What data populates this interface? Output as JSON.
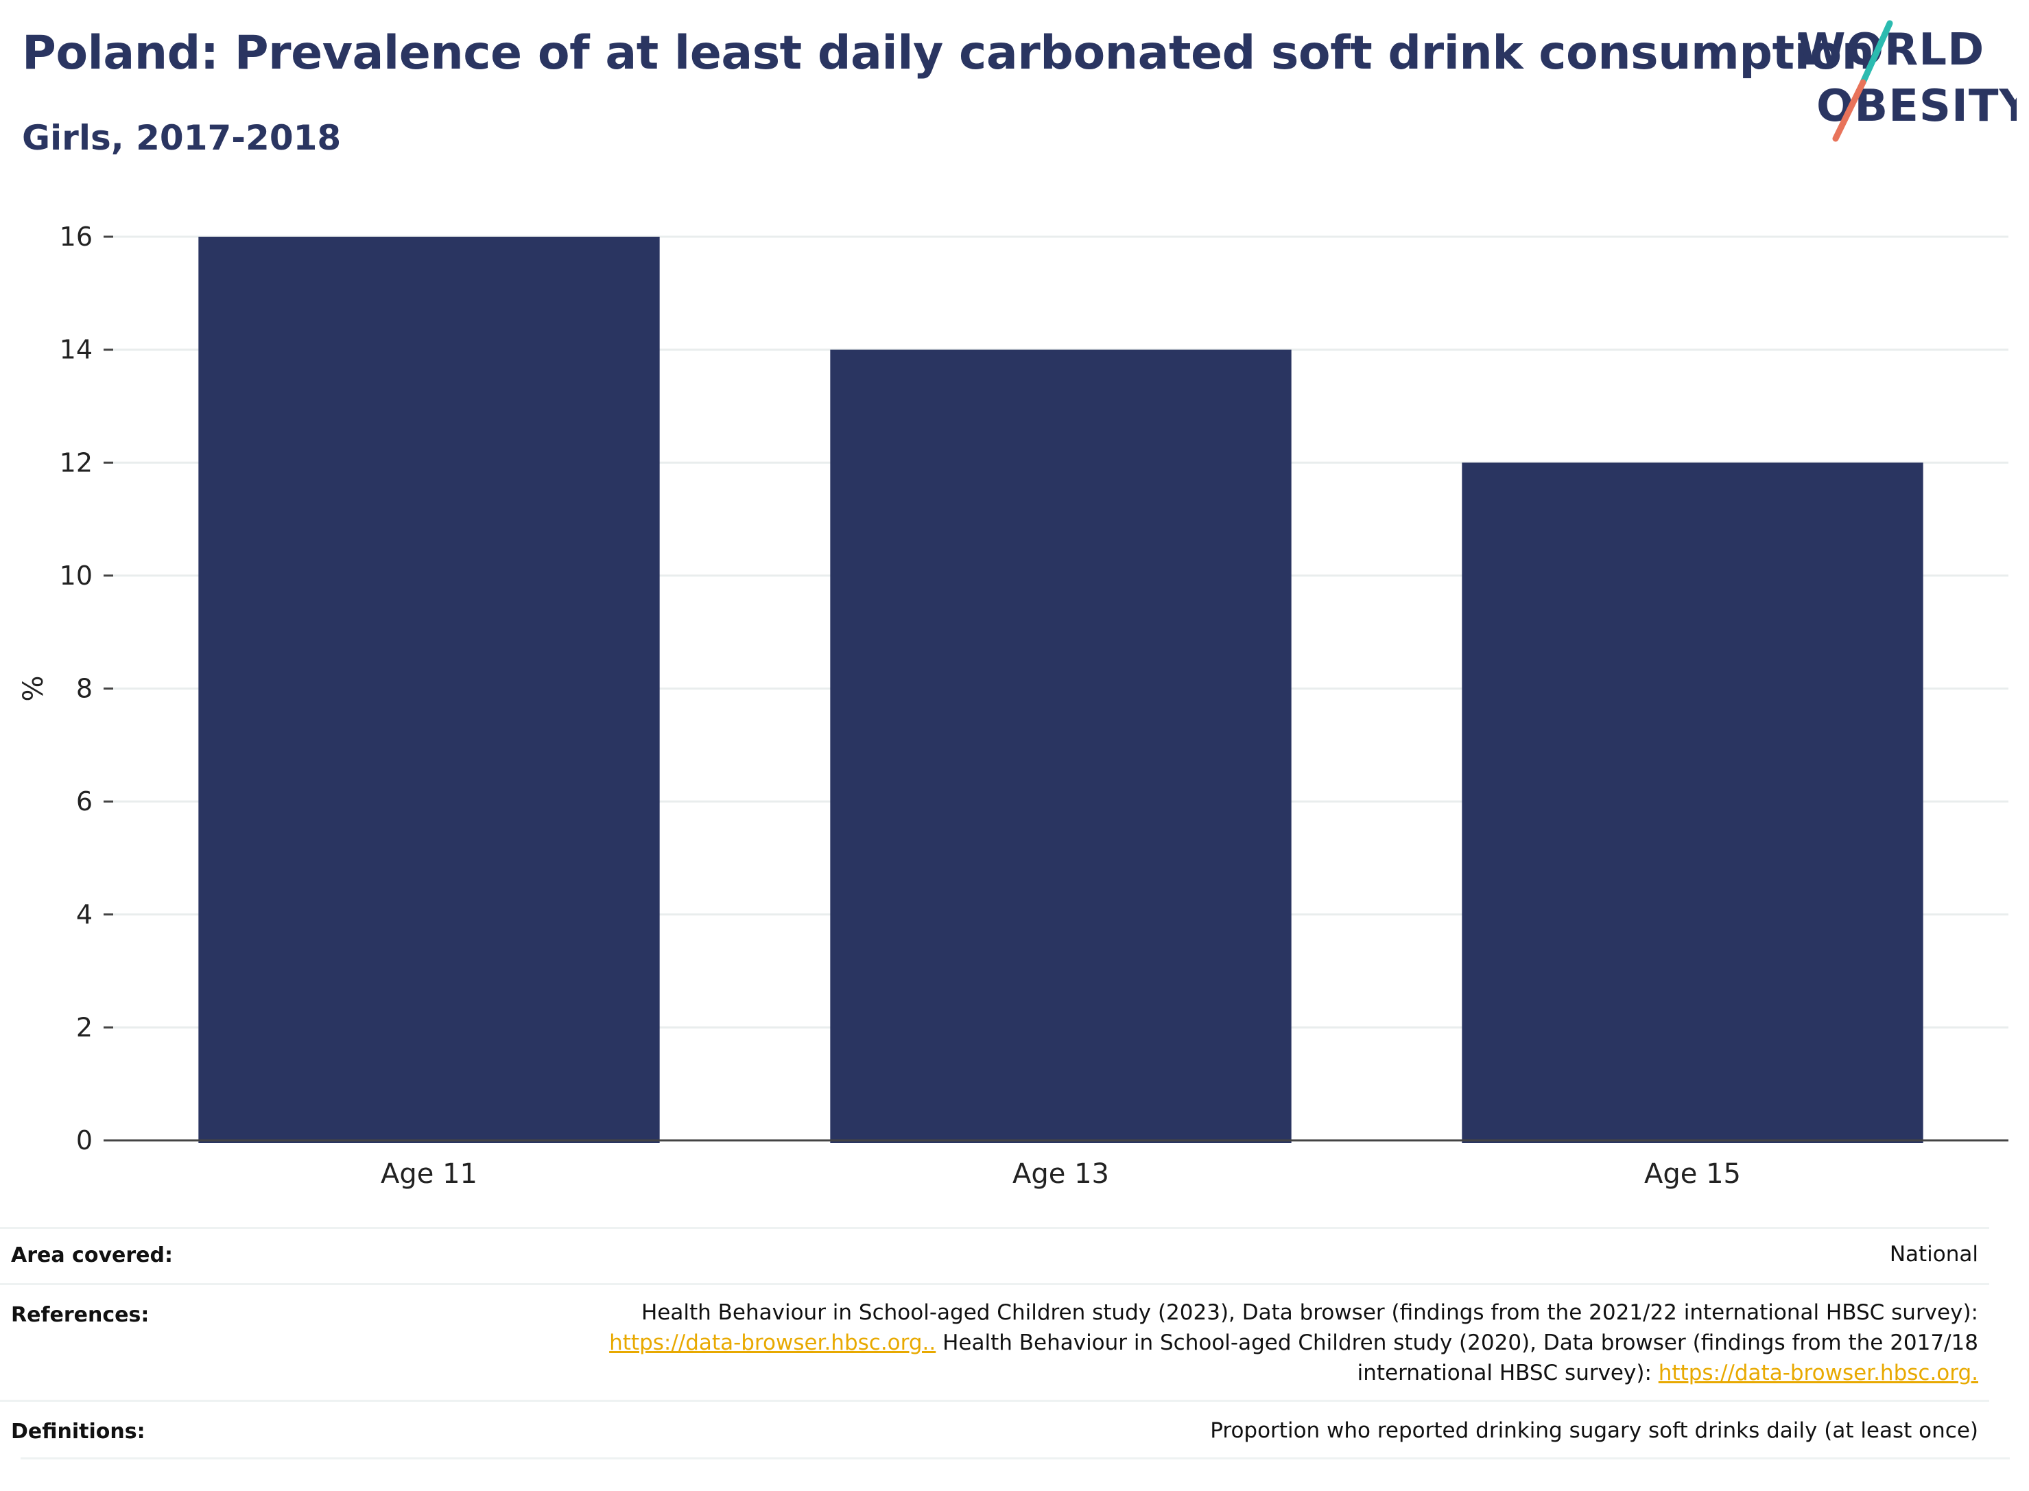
{
  "header": {
    "title": "Poland: Prevalence of at least daily carbonated soft drink consumption",
    "subtitle": "Girls, 2017-2018"
  },
  "logo": {
    "line1": "WORLD",
    "line2": "OBESITY"
  },
  "colors": {
    "bar": "#2a3561",
    "title": "#2a3561",
    "grid": "#e9eded",
    "axis": "#444444",
    "link": "#e8a900",
    "logo_teal": "#2bbbb0",
    "logo_coral": "#e8735a"
  },
  "chart_data": {
    "type": "bar",
    "categories": [
      "Age 11",
      "Age 13",
      "Age 15"
    ],
    "values": [
      16,
      14,
      12
    ],
    "title": "Poland: Prevalence of at least daily carbonated soft drink consumption",
    "subtitle": "Girls, 2017-2018",
    "xlabel": "",
    "ylabel": "%",
    "ylim": [
      0,
      16
    ],
    "yticks": [
      0,
      2,
      4,
      6,
      8,
      10,
      12,
      14,
      16
    ],
    "grid": true,
    "legend": "none"
  },
  "info": {
    "area": {
      "label": "Area covered:",
      "value": "National"
    },
    "references": {
      "label": "References:",
      "line1": "Health Behaviour in School-aged Children study (2023), Data browser (findings from the 2021/22 international HBSC survey):",
      "link1": "https://data-browser.hbsc.org..",
      "line2": " Health Behaviour in School-aged Children study (2020), Data browser (findings from the 2017/18",
      "line3": "international HBSC survey): ",
      "link2": "https://data-browser.hbsc.org."
    },
    "definitions": {
      "label": "Definitions:",
      "value": "Proportion who reported drinking sugary soft drinks daily (at least once)"
    }
  }
}
